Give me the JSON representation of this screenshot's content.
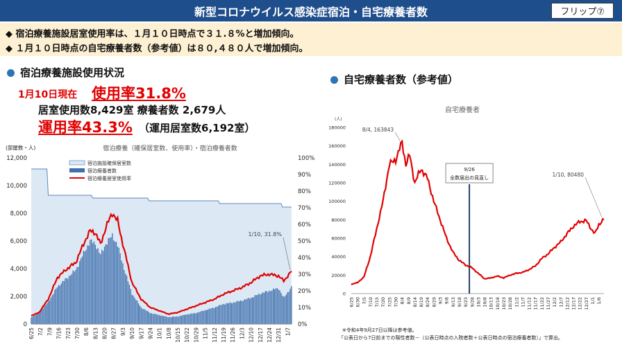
{
  "header": {
    "title": "新型コロナウイルス感染症宿泊・自宅療養者数",
    "flip_label": "フリップ⑦"
  },
  "highlights": [
    "◆ 宿泊療養施設居室使用率は、１月１０日時点で３１.８%と増加傾向。",
    "◆ １月１０日時点の自宅療養者数（参考値）は８０,４８０人で増加傾向。"
  ],
  "left": {
    "section_title": "宿泊療養施設使用状況",
    "date_label": "1月10日現在",
    "usage_rate": "使用率31.8%",
    "rooms_line": "居室使用数8,429室 療養者数 2,679人",
    "operation_rate": "運用率43.3%",
    "operation_rooms": "（運用居室数6,192室）"
  },
  "right": {
    "section_title": "自宅療養者数（参考値）",
    "footnote_1": "※令和4年9月27日以降は参考値。",
    "footnote_2": "「公表日から7日前までの陽性者数－（公表日時点の入院者数＋公表日時点の宿泊療養者数）」で算出。"
  },
  "colors": {
    "header": "#1f4e8c",
    "highlight_bg": "#fdf0d3",
    "accent_red": "#e00000",
    "capacity_fill": "#dce9f5",
    "capacity_line": "#5b87bf",
    "patient_bar": "#3f6fad",
    "home_line": "#e00000",
    "vline": "#1f3a6a"
  },
  "chart_data": [
    {
      "type": "bar",
      "title": "宿泊療養（確保居室数、使用率）・宿泊療養者数",
      "ylabel": "(部屋数・人)",
      "ylim": [
        0,
        12000
      ],
      "y2lim": [
        0,
        100
      ],
      "y_ticks": [
        "0",
        "2,000",
        "4,000",
        "6,000",
        "8,000",
        "10,000",
        "12,000"
      ],
      "y2_ticks": [
        "0%",
        "10%",
        "20%",
        "30%",
        "40%",
        "50%",
        "60%",
        "70%",
        "80%",
        "90%",
        "100%"
      ],
      "x_start": "2022-06-25",
      "x_end": "2023-01-10",
      "x_ticks": [
        "6/25",
        "7/2",
        "7/9",
        "7/16",
        "7/23",
        "7/30",
        "8/6",
        "8/13",
        "8/20",
        "8/27",
        "9/3",
        "9/10",
        "9/17",
        "9/24",
        "10/1",
        "10/8",
        "10/15",
        "10/22",
        "10/29",
        "11/5",
        "11/12",
        "11/19",
        "11/26",
        "12/3",
        "12/10",
        "12/17",
        "12/24",
        "12/31",
        "1/7"
      ],
      "legend": [
        "宿泊施設確保居室数",
        "宿泊療養者数",
        "宿泊療養居室使用率"
      ],
      "annotation": "1/10, 31.8%",
      "series": [
        {
          "name": "宿泊施設確保居室数",
          "kind": "area-step",
          "points": [
            [
              "2022-06-25",
              11200
            ],
            [
              "2022-07-07",
              11200
            ],
            [
              "2022-07-08",
              9300
            ],
            [
              "2022-08-10",
              9300
            ],
            [
              "2022-08-11",
              9100
            ],
            [
              "2022-09-22",
              9100
            ],
            [
              "2022-09-23",
              8900
            ],
            [
              "2022-11-15",
              8900
            ],
            [
              "2022-11-16",
              8700
            ],
            [
              "2023-01-02",
              8700
            ],
            [
              "2023-01-03",
              8450
            ],
            [
              "2023-01-10",
              8450
            ]
          ]
        },
        {
          "name": "宿泊療養者数",
          "kind": "bars",
          "points": [
            [
              "2022-06-25",
              500
            ],
            [
              "2022-07-01",
              800
            ],
            [
              "2022-07-08",
              1600
            ],
            [
              "2022-07-15",
              2700
            ],
            [
              "2022-07-22",
              3300
            ],
            [
              "2022-07-29",
              3900
            ],
            [
              "2022-08-05",
              5300
            ],
            [
              "2022-08-09",
              6000
            ],
            [
              "2022-08-13",
              5800
            ],
            [
              "2022-08-17",
              5000
            ],
            [
              "2022-08-21",
              5800
            ],
            [
              "2022-08-26",
              6400
            ],
            [
              "2022-08-30",
              5700
            ],
            [
              "2022-09-04",
              4000
            ],
            [
              "2022-09-10",
              2200
            ],
            [
              "2022-09-17",
              1200
            ],
            [
              "2022-09-24",
              800
            ],
            [
              "2022-10-01",
              650
            ],
            [
              "2022-10-08",
              500
            ],
            [
              "2022-10-15",
              550
            ],
            [
              "2022-10-22",
              700
            ],
            [
              "2022-10-29",
              800
            ],
            [
              "2022-11-05",
              1000
            ],
            [
              "2022-11-12",
              1200
            ],
            [
              "2022-11-19",
              1450
            ],
            [
              "2022-11-26",
              1550
            ],
            [
              "2022-12-03",
              1700
            ],
            [
              "2022-12-10",
              1900
            ],
            [
              "2022-12-17",
              2200
            ],
            [
              "2022-12-24",
              2400
            ],
            [
              "2022-12-31",
              2600
            ],
            [
              "2023-01-04",
              1900
            ],
            [
              "2023-01-10",
              2679
            ]
          ]
        },
        {
          "name": "宿泊療養居室使用率",
          "kind": "line-right-axis",
          "points": [
            [
              "2022-06-25",
              5
            ],
            [
              "2022-07-01",
              7
            ],
            [
              "2022-07-08",
              15
            ],
            [
              "2022-07-15",
              28
            ],
            [
              "2022-07-22",
              33
            ],
            [
              "2022-07-29",
              37
            ],
            [
              "2022-08-05",
              50
            ],
            [
              "2022-08-09",
              56
            ],
            [
              "2022-08-13",
              55
            ],
            [
              "2022-08-17",
              48
            ],
            [
              "2022-08-21",
              58
            ],
            [
              "2022-08-26",
              67
            ],
            [
              "2022-08-30",
              62
            ],
            [
              "2022-09-04",
              45
            ],
            [
              "2022-09-10",
              25
            ],
            [
              "2022-09-17",
              15
            ],
            [
              "2022-09-24",
              10
            ],
            [
              "2022-10-01",
              8
            ],
            [
              "2022-10-08",
              6
            ],
            [
              "2022-10-15",
              7
            ],
            [
              "2022-10-22",
              9
            ],
            [
              "2022-10-29",
              11
            ],
            [
              "2022-11-05",
              13
            ],
            [
              "2022-11-12",
              15
            ],
            [
              "2022-11-19",
              18
            ],
            [
              "2022-11-26",
              20
            ],
            [
              "2022-12-03",
              22
            ],
            [
              "2022-12-10",
              25
            ],
            [
              "2022-12-17",
              29
            ],
            [
              "2022-12-24",
              30
            ],
            [
              "2022-12-31",
              29
            ],
            [
              "2023-01-04",
              26
            ],
            [
              "2023-01-10",
              31.8
            ]
          ]
        }
      ]
    },
    {
      "type": "line",
      "title": "自宅療養者",
      "ylabel": "(人)",
      "ylim": [
        0,
        180000
      ],
      "y_ticks": [
        "0",
        "20000",
        "40000",
        "60000",
        "80000",
        "100000",
        "120000",
        "140000",
        "160000",
        "180000"
      ],
      "x_start": "2022-06-25",
      "x_end": "2023-01-10",
      "x_ticks": [
        "6/25",
        "6/30",
        "7/5",
        "7/10",
        "7/15",
        "7/20",
        "7/25",
        "7/30",
        "8/4",
        "8/9",
        "8/14",
        "8/19",
        "8/24",
        "8/29",
        "9/3",
        "9/8",
        "9/13",
        "9/18",
        "9/23",
        "9/28",
        "10/3",
        "10/8",
        "10/13",
        "10/18",
        "10/23",
        "10/28",
        "11/2",
        "11/7",
        "11/12",
        "11/17",
        "11/22",
        "11/27",
        "12/2",
        "12/7",
        "12/12",
        "12/17",
        "12/22",
        "12/27",
        "1/1",
        "1/6"
      ],
      "vline": {
        "date": "2022-09-26",
        "label_1": "9/26",
        "label_2": "全数届出の見直し"
      },
      "annotations": [
        "8/4, 163843",
        "1/10, 80480"
      ],
      "series": [
        {
          "name": "自宅療養者",
          "points": [
            [
              "2022-06-25",
              10000
            ],
            [
              "2022-06-30",
              12000
            ],
            [
              "2022-07-05",
              18000
            ],
            [
              "2022-07-10",
              40000
            ],
            [
              "2022-07-15",
              70000
            ],
            [
              "2022-07-20",
              100000
            ],
            [
              "2022-07-25",
              140000
            ],
            [
              "2022-07-30",
              145000
            ],
            [
              "2022-08-04",
              163843
            ],
            [
              "2022-08-07",
              140000
            ],
            [
              "2022-08-10",
              150000
            ],
            [
              "2022-08-14",
              120000
            ],
            [
              "2022-08-19",
              135000
            ],
            [
              "2022-08-24",
              125000
            ],
            [
              "2022-08-29",
              100000
            ],
            [
              "2022-09-03",
              80000
            ],
            [
              "2022-09-08",
              60000
            ],
            [
              "2022-09-13",
              45000
            ],
            [
              "2022-09-18",
              36000
            ],
            [
              "2022-09-23",
              31000
            ],
            [
              "2022-09-28",
              28000
            ],
            [
              "2022-10-03",
              22000
            ],
            [
              "2022-10-08",
              16000
            ],
            [
              "2022-10-13",
              17000
            ],
            [
              "2022-10-18",
              19000
            ],
            [
              "2022-10-23",
              17000
            ],
            [
              "2022-10-28",
              20000
            ],
            [
              "2022-11-02",
              22000
            ],
            [
              "2022-11-07",
              23000
            ],
            [
              "2022-11-12",
              26000
            ],
            [
              "2022-11-17",
              30000
            ],
            [
              "2022-11-22",
              38000
            ],
            [
              "2022-11-27",
              43000
            ],
            [
              "2022-12-02",
              50000
            ],
            [
              "2022-12-07",
              56000
            ],
            [
              "2022-12-12",
              65000
            ],
            [
              "2022-12-17",
              73000
            ],
            [
              "2022-12-22",
              78000
            ],
            [
              "2022-12-27",
              79000
            ],
            [
              "2023-01-01",
              68000
            ],
            [
              "2023-01-03",
              65000
            ],
            [
              "2023-01-06",
              75000
            ],
            [
              "2023-01-10",
              80480
            ]
          ]
        }
      ]
    }
  ]
}
